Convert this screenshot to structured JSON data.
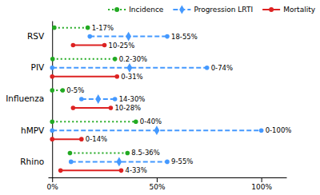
{
  "chart_data": {
    "type": "range",
    "categories": [
      "RSV",
      "PIV",
      "Influenza",
      "hMPV",
      "Rhino"
    ],
    "series": [
      {
        "name": "Incidence",
        "color": "#22aa22",
        "line_style": "dotted",
        "marker": "circle",
        "start": [
          1,
          0.2,
          0,
          0,
          8.5
        ],
        "end": [
          17,
          30,
          5,
          40,
          36
        ],
        "value_labels": [
          "1-17%",
          "0.2-30%",
          "0-5%",
          "0-40%",
          "8.5-36%"
        ]
      },
      {
        "name": "Progression LRTI",
        "color": "#4499ff",
        "line_style": "dashed",
        "marker": "diamond",
        "start": [
          18,
          0,
          14,
          0,
          9
        ],
        "end": [
          55,
          74,
          30,
          100,
          55
        ],
        "midpoints": [
          36.5,
          37,
          22,
          50,
          32
        ],
        "value_labels": [
          "18-55%",
          "0-74%",
          "14-30%",
          "0-100%",
          "9-55%"
        ]
      },
      {
        "name": "Mortality",
        "color": "#dd2222",
        "line_style": "solid",
        "marker": "circle",
        "start": [
          10,
          0,
          10,
          0,
          4
        ],
        "end": [
          25,
          31,
          28,
          14,
          33
        ],
        "value_labels": [
          "10-25%",
          "0-31%",
          "10-28%",
          "0-14%",
          "4-33%"
        ]
      }
    ],
    "xlim": [
      -2,
      112
    ],
    "xticks": [
      {
        "value": 0,
        "label": "0%"
      },
      {
        "value": 50,
        "label": "50%"
      },
      {
        "value": 100,
        "label": "100%"
      }
    ],
    "legend": "upper right",
    "grid": false,
    "data_labels": true
  }
}
